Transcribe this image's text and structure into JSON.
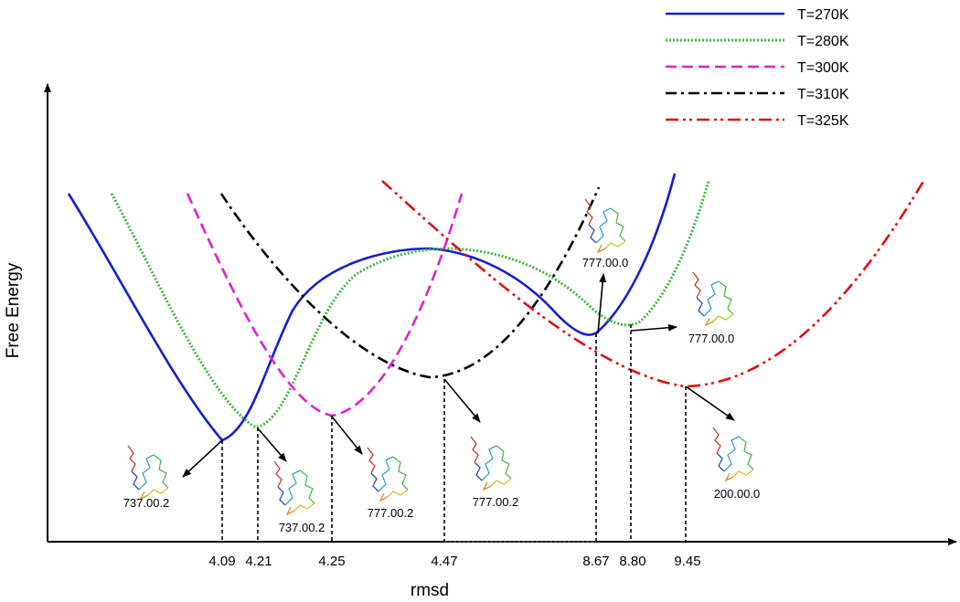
{
  "axes": {
    "y_label": "Free Energy",
    "x_label": "rmsd"
  },
  "legend": [
    "T=270K",
    "T=280K",
    "T=300K",
    "T=310K",
    "T=325K"
  ],
  "ticks": [
    "4.09",
    "4.21",
    "4.25",
    "4.47",
    "8.67",
    "8.80",
    "9.45"
  ],
  "structures": [
    "737.00.2",
    "737.00.2",
    "777.00.2",
    "777.00.2",
    "777.00.0",
    "777.00.0",
    "200.00.0"
  ]
}
